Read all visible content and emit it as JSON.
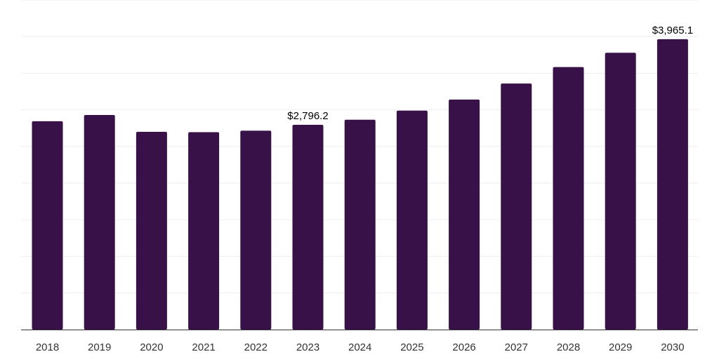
{
  "chart_data": {
    "type": "bar",
    "title": "",
    "xlabel": "",
    "ylabel": "",
    "categories": [
      "2018",
      "2019",
      "2020",
      "2021",
      "2022",
      "2023",
      "2024",
      "2025",
      "2026",
      "2027",
      "2028",
      "2029",
      "2030"
    ],
    "values": [
      2845,
      2930,
      2700,
      2695,
      2715,
      2796.2,
      2865,
      2990,
      3140,
      3360,
      3585,
      3780,
      3965.1
    ],
    "value_labels": [
      {
        "index": 5,
        "text": "$2,796.2"
      },
      {
        "index": 12,
        "text": "$3,965.1"
      }
    ],
    "ylim": [
      0,
      4500
    ],
    "grid": true,
    "legend": "none",
    "colors": {
      "bar": "#371147",
      "grid": "#eeeeee",
      "axis": "#333333"
    }
  }
}
